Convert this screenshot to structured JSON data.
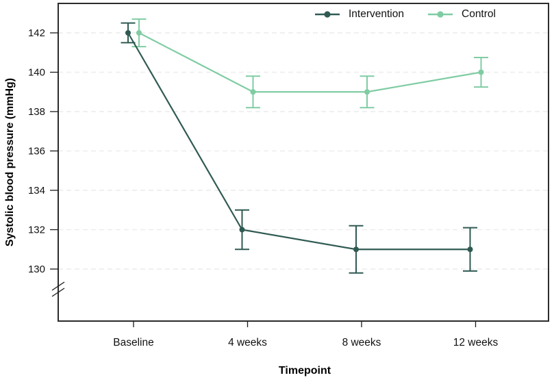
{
  "chart_data": {
    "type": "line",
    "title": "",
    "xlabel": "Timepoint",
    "ylabel": "Systolic blood pressure (mmHg)",
    "categories": [
      "Baseline",
      "4 weeks",
      "8 weeks",
      "12 weeks"
    ],
    "y_ticks": [
      130,
      132,
      134,
      136,
      138,
      140,
      142
    ],
    "ylim_shown": [
      127.4,
      143.5
    ],
    "axis_break": true,
    "grid": {
      "horizontal": true,
      "style": "dashed",
      "color": "#ececec"
    },
    "legend_position": "top-right-inside",
    "series": [
      {
        "name": "Intervention",
        "color": "#2f5a52",
        "values": [
          142,
          132,
          131,
          131
        ],
        "errors": [
          0.5,
          1.0,
          1.2,
          1.1
        ]
      },
      {
        "name": "Control",
        "color": "#7fcca3",
        "values": [
          142,
          139,
          139,
          140
        ],
        "errors": [
          0.7,
          0.8,
          0.8,
          0.75
        ]
      }
    ],
    "frame_color": "#2b2b2b",
    "axis_text_color": "#111111"
  }
}
